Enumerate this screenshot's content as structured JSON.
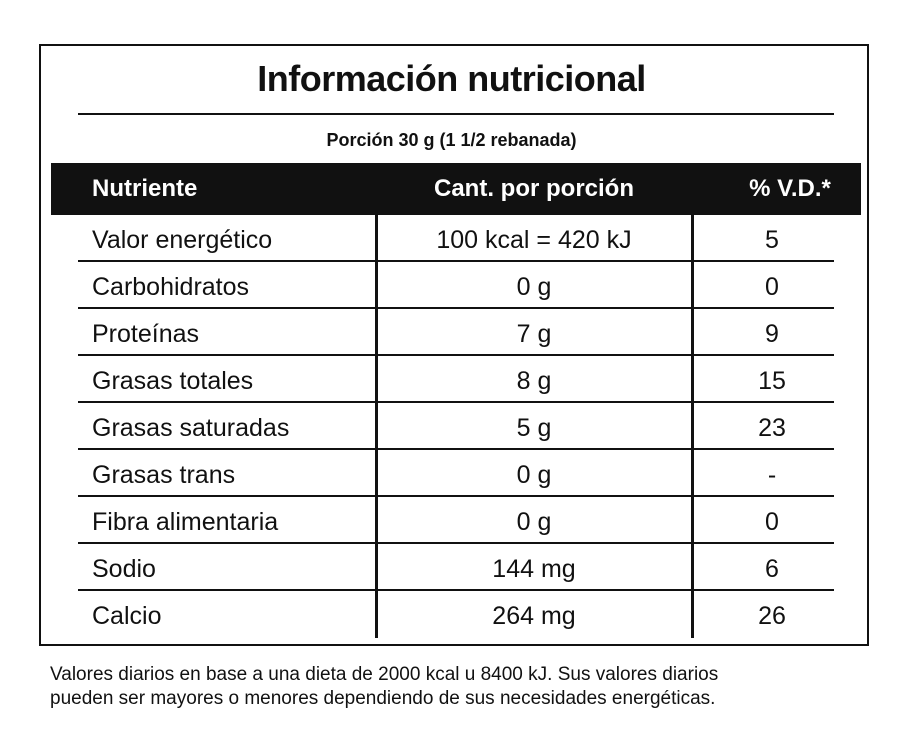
{
  "label": {
    "title": "Información nutricional",
    "portion": "Porción 30 g (1 1/2 rebanada)",
    "headers": {
      "nutrient": "Nutriente",
      "amount": "Cant. por porción",
      "daily_value": "% V.D.*"
    },
    "rows": [
      {
        "name": "Valor energético",
        "amount": "100 kcal = 420 kJ",
        "vd": "5"
      },
      {
        "name": "Carbohidratos",
        "amount": "0 g",
        "vd": "0"
      },
      {
        "name": "Proteínas",
        "amount": "7 g",
        "vd": "9"
      },
      {
        "name": "Grasas totales",
        "amount": "8 g",
        "vd": "15"
      },
      {
        "name": "Grasas saturadas",
        "amount": "5 g",
        "vd": "23"
      },
      {
        "name": "Grasas trans",
        "amount": "0 g",
        "vd": "-"
      },
      {
        "name": "Fibra alimentaria",
        "amount": "0 g",
        "vd": "0"
      },
      {
        "name": "Sodio",
        "amount": "144 mg",
        "vd": "6"
      },
      {
        "name": "Calcio",
        "amount": "264 mg",
        "vd": "26"
      }
    ],
    "footnote_line1": "Valores diarios en base a una dieta de 2000 kcal u 8400 kJ. Sus valores diarios",
    "footnote_line2": "pueden ser mayores o menores dependiendo de sus necesidades energéticas."
  }
}
